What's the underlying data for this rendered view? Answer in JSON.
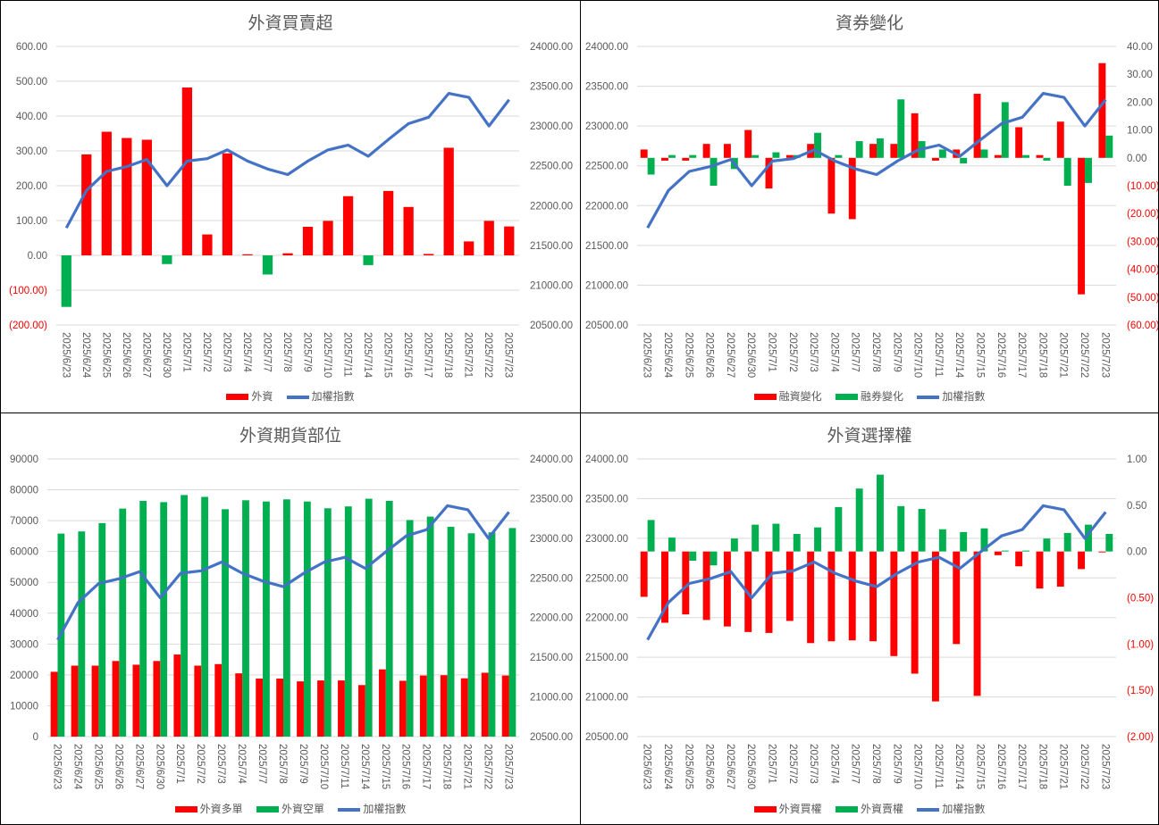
{
  "colors": {
    "red": "#FF0000",
    "green": "#00B050",
    "blue": "#4472C4",
    "grid": "#D9D9D9",
    "text": "#595959"
  },
  "dates": [
    "2025/6/23",
    "2025/6/24",
    "2025/6/25",
    "2025/6/26",
    "2025/6/27",
    "2025/6/30",
    "2025/7/1",
    "2025/7/2",
    "2025/7/3",
    "2025/7/4",
    "2025/7/7",
    "2025/7/8",
    "2025/7/9",
    "2025/7/10",
    "2025/7/11",
    "2025/7/14",
    "2025/7/15",
    "2025/7/16",
    "2025/7/17",
    "2025/7/18",
    "2025/7/21",
    "2025/7/22",
    "2025/7/23"
  ],
  "chart_data": [
    {
      "type": "bar",
      "title": "外資買賣超",
      "ylim": [
        -200,
        600
      ],
      "y_ticks": [
        "600.00",
        "500.00",
        "400.00",
        "300.00",
        "200.00",
        "100.00",
        "0.00",
        "(100.00)",
        "(200.00)"
      ],
      "y2lim": [
        20500,
        24000
      ],
      "y2_ticks": [
        "24000.00",
        "23500.00",
        "23000.00",
        "22500.00",
        "22000.00",
        "21500.00",
        "21000.00",
        "20500.00"
      ],
      "series": [
        {
          "name": "外資",
          "type": "bar",
          "axis": "left",
          "values": [
            -148,
            290,
            355,
            337,
            332,
            -25,
            482,
            60,
            293,
            3,
            -55,
            6,
            82,
            99,
            170,
            -28,
            185,
            139,
            4,
            309,
            40,
            99,
            83
          ]
        },
        {
          "name": "加權指數",
          "type": "line",
          "axis": "right",
          "values": [
            21720,
            22190,
            22430,
            22490,
            22580,
            22250,
            22560,
            22590,
            22700,
            22560,
            22460,
            22390,
            22560,
            22700,
            22760,
            22620,
            22830,
            23030,
            23110,
            23410,
            23360,
            23000,
            23330
          ]
        }
      ],
      "legend": [
        "外資",
        "加權指數"
      ]
    },
    {
      "type": "bar",
      "title": "資券變化",
      "ylim": [
        20500,
        24000
      ],
      "y_ticks": [
        "24000.00",
        "23500.00",
        "23000.00",
        "22500.00",
        "22000.00",
        "21500.00",
        "21000.00",
        "20500.00"
      ],
      "y2lim": [
        -60,
        40
      ],
      "y2_ticks": [
        "40.00",
        "30.00",
        "20.00",
        "10.00",
        "0.00",
        "(10.00)",
        "(20.00)",
        "(30.00)",
        "(40.00)",
        "(50.00)",
        "(60.00)"
      ],
      "series": [
        {
          "name": "融資變化",
          "type": "bar",
          "axis": "right",
          "values": [
            3,
            -1,
            -1,
            5,
            5,
            10,
            -11,
            1,
            5,
            -20,
            -22,
            5,
            5,
            16,
            -1,
            3,
            23,
            1,
            11,
            1,
            13,
            -49,
            34
          ]
        },
        {
          "name": "融券變化",
          "type": "bar",
          "axis": "right",
          "values": [
            -6,
            1,
            1,
            -10,
            -4,
            1,
            2,
            1,
            9,
            1,
            6,
            7,
            21,
            6,
            3,
            -2,
            3,
            20,
            1,
            -1,
            -10,
            -9,
            8
          ]
        },
        {
          "name": "加權指數",
          "type": "line",
          "axis": "left",
          "values": [
            21720,
            22190,
            22430,
            22490,
            22580,
            22250,
            22560,
            22590,
            22700,
            22560,
            22460,
            22390,
            22560,
            22700,
            22760,
            22620,
            22830,
            23030,
            23110,
            23410,
            23360,
            23000,
            23330
          ]
        }
      ],
      "legend": [
        "融資變化",
        "融券變化",
        "加權指數"
      ]
    },
    {
      "type": "bar",
      "title": "外資期貨部位",
      "ylim": [
        0,
        90000
      ],
      "y_ticks": [
        "90000",
        "80000",
        "70000",
        "60000",
        "50000",
        "40000",
        "30000",
        "20000",
        "10000",
        "0"
      ],
      "y2lim": [
        20500,
        24000
      ],
      "y2_ticks": [
        "24000.00",
        "23500.00",
        "23000.00",
        "22500.00",
        "22000.00",
        "21500.00",
        "21000.00",
        "20500.00"
      ],
      "series": [
        {
          "name": "外資多單",
          "type": "bar",
          "axis": "left",
          "values": [
            21000,
            23000,
            23000,
            24500,
            23300,
            24500,
            26600,
            23000,
            23500,
            20500,
            18800,
            18800,
            17900,
            18200,
            18200,
            16700,
            21800,
            18100,
            19800,
            19900,
            18900,
            20700,
            19800
          ]
        },
        {
          "name": "外資空單",
          "type": "bar",
          "axis": "left",
          "values": [
            65800,
            66500,
            69200,
            73900,
            76400,
            76000,
            78300,
            77700,
            73700,
            76600,
            76200,
            76900,
            76200,
            74000,
            74600,
            77100,
            76400,
            70200,
            71300,
            68000,
            65900,
            66200,
            67600
          ]
        },
        {
          "name": "加權指數",
          "type": "line",
          "axis": "right",
          "values": [
            21720,
            22190,
            22430,
            22490,
            22580,
            22250,
            22560,
            22590,
            22700,
            22560,
            22460,
            22390,
            22560,
            22700,
            22760,
            22620,
            22830,
            23030,
            23110,
            23410,
            23360,
            23000,
            23330
          ]
        }
      ],
      "legend": [
        "外資多單",
        "外資空單",
        "加權指數"
      ]
    },
    {
      "type": "bar",
      "title": "外資選擇權",
      "ylim": [
        20500,
        24000
      ],
      "y_ticks": [
        "24000.00",
        "23500.00",
        "23000.00",
        "22500.00",
        "22000.00",
        "21500.00",
        "21000.00",
        "20500.00"
      ],
      "y2lim": [
        -2,
        1
      ],
      "y2_ticks": [
        "1.00",
        "0.50",
        "0.00",
        "(0.50)",
        "(1.00)",
        "(1.50)",
        "(2.00)"
      ],
      "series": [
        {
          "name": "外資買權",
          "type": "bar",
          "axis": "right",
          "values": [
            -0.49,
            -0.77,
            -0.68,
            -0.74,
            -0.81,
            -0.87,
            -0.88,
            -0.75,
            -0.99,
            -0.97,
            -0.96,
            -0.97,
            -1.13,
            -1.32,
            -1.62,
            -1.0,
            -1.56,
            -0.04,
            -0.16,
            -0.4,
            -0.38,
            -0.19,
            -0.01
          ]
        },
        {
          "name": "外資賣權",
          "type": "bar",
          "axis": "right",
          "values": [
            0.34,
            0.15,
            -0.1,
            -0.15,
            0.14,
            0.29,
            0.3,
            0.19,
            0.26,
            0.48,
            0.68,
            0.83,
            0.49,
            0.46,
            0.24,
            0.21,
            0.25,
            0.01,
            0.01,
            0.14,
            0.2,
            0.29,
            0.19
          ]
        },
        {
          "name": "加權指數",
          "type": "line",
          "axis": "left",
          "values": [
            21720,
            22190,
            22430,
            22490,
            22580,
            22250,
            22560,
            22590,
            22700,
            22560,
            22460,
            22390,
            22560,
            22700,
            22760,
            22620,
            22830,
            23030,
            23110,
            23410,
            23360,
            23000,
            23330
          ]
        }
      ],
      "legend": [
        "外資買權",
        "外資賣權",
        "加權指數"
      ]
    }
  ]
}
